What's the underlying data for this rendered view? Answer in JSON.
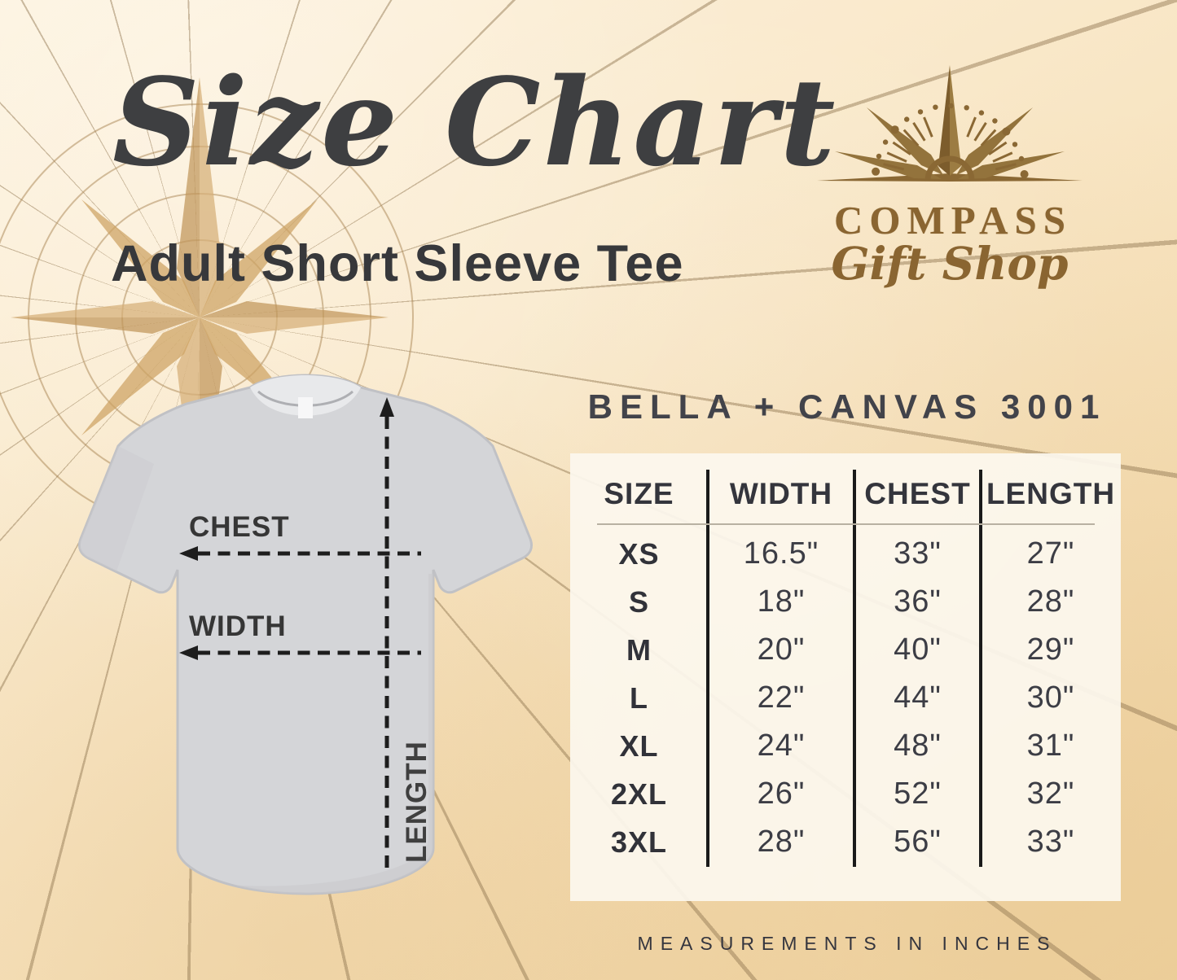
{
  "header": {
    "title": "Size Chart",
    "subtitle": "Adult Short Sleeve Tee"
  },
  "brand": {
    "name": "COMPASS",
    "tagline": "Gift Shop"
  },
  "shirt_diagram": {
    "chest_label": "CHEST",
    "width_label": "WIDTH",
    "length_label": "LENGTH"
  },
  "chart_data": {
    "type": "table",
    "title": "Size Chart — Adult Short Sleeve Tee",
    "product": "BELLA + CANVAS 3001",
    "units": "inches",
    "columns": [
      "SIZE",
      "WIDTH",
      "CHEST",
      "LENGTH"
    ],
    "rows": [
      [
        "XS",
        "16.5\"",
        "33\"",
        "27\""
      ],
      [
        "S",
        "18\"",
        "36\"",
        "28\""
      ],
      [
        "M",
        "20\"",
        "40\"",
        "29\""
      ],
      [
        "L",
        "22\"",
        "44\"",
        "30\""
      ],
      [
        "XL",
        "24\"",
        "48\"",
        "31\""
      ],
      [
        "2XL",
        "26\"",
        "52\"",
        "32\""
      ],
      [
        "3XL",
        "28\"",
        "56\"",
        "33\""
      ]
    ]
  },
  "footer": {
    "note": "MEASUREMENTS IN INCHES"
  },
  "colors": {
    "background": "#f8e6c4",
    "panel": "#fbf6ed",
    "text_dark": "#3b3c42",
    "accent_gold": "#8a6531",
    "star_watermark": "#cfa76b",
    "shirt_gray": "#d3d4d7",
    "line_black": "#1d1d1d"
  }
}
